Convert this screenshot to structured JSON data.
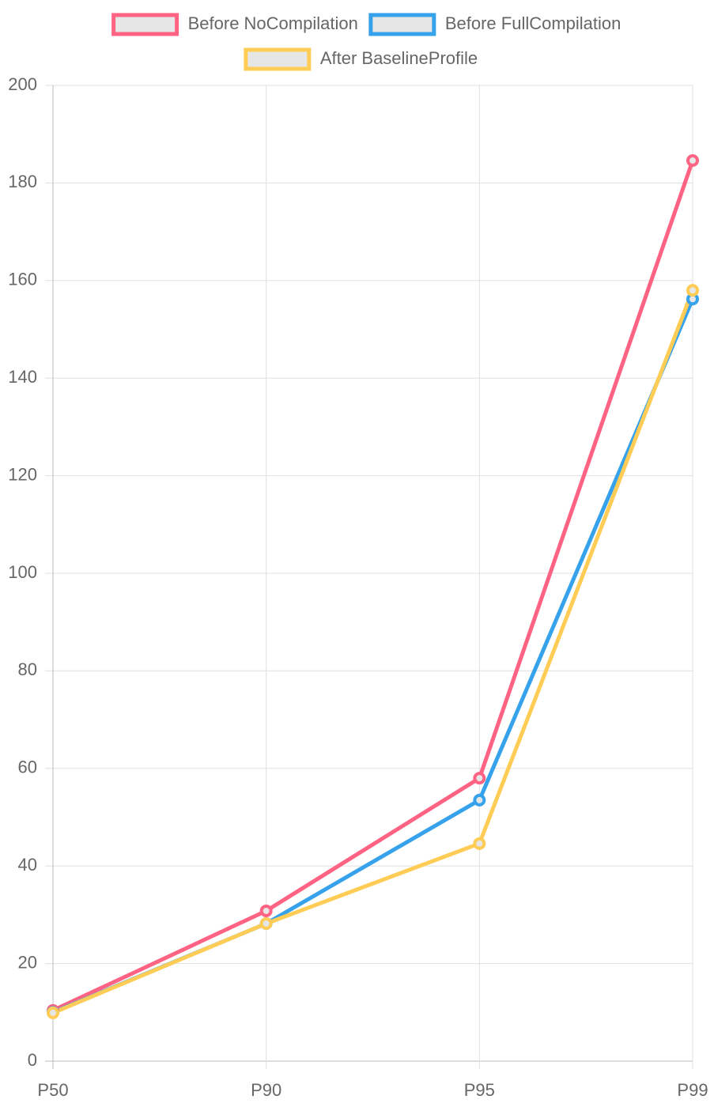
{
  "chart_data": {
    "type": "line",
    "categories": [
      "P50",
      "P90",
      "P95",
      "P99"
    ],
    "series": [
      {
        "name": "Before NoCompilation",
        "color": "#ff6384",
        "values": [
          10.4,
          30.8,
          58.0,
          184.6
        ]
      },
      {
        "name": "Before FullCompilation",
        "color": "#36a2eb",
        "values": [
          10.0,
          28.2,
          53.5,
          156.2
        ]
      },
      {
        "name": "After BaselineProfile",
        "color": "#ffcd56",
        "values": [
          9.9,
          28.2,
          44.6,
          158.0
        ]
      }
    ],
    "ylim": [
      0,
      200
    ],
    "yticks": [
      0,
      20,
      40,
      60,
      80,
      100,
      120,
      140,
      160,
      180,
      200
    ],
    "grid": true,
    "legend": "top"
  }
}
